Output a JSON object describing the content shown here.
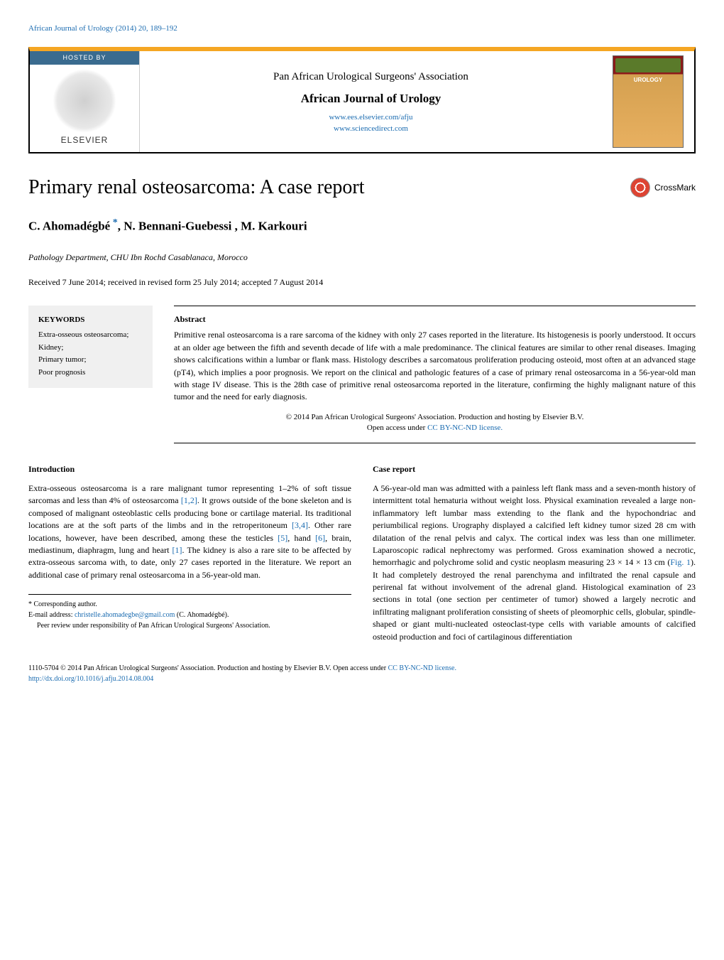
{
  "header_link": "African Journal of Urology (2014) 20, 189–192",
  "banner": {
    "hosted_by": "HOSTED BY",
    "elsevier": "ELSEVIER",
    "association": "Pan African Urological Surgeons' Association",
    "journal": "African Journal of Urology",
    "link1": "www.ees.elsevier.com/afju",
    "link2": "www.sciencedirect.com",
    "cover_badge": "AFRICAN JOURNAL"
  },
  "title": "Primary renal osteosarcoma: A case report",
  "crossmark": "CrossMark",
  "authors": "C. Ahomadégbé *, N. Bennani-Guebessi , M. Karkouri",
  "affiliation": "Pathology Department, CHU Ibn Rochd Casablanaca, Morocco",
  "dates": "Received 7 June 2014; received in revised form 25 July 2014; accepted 7 August 2014",
  "keywords": {
    "heading": "KEYWORDS",
    "items": "Extra-osseous osteosarcoma;\nKidney;\nPrimary tumor;\nPoor prognosis"
  },
  "abstract": {
    "heading": "Abstract",
    "text": "Primitive renal osteosarcoma is a rare sarcoma of the kidney with only 27 cases reported in the literature. Its histogenesis is poorly understood. It occurs at an older age between the fifth and seventh decade of life with a male predominance. The clinical features are similar to other renal diseases. Imaging shows calcifications within a lumbar or flank mass. Histology describes a sarcomatous proliferation producing osteoid, most often at an advanced stage (pT4), which implies a poor prognosis. We report on the clinical and pathologic features of a case of primary renal osteosarcoma in a 56-year-old man with stage IV disease. This is the 28th case of primitive renal osteosarcoma reported in the literature, confirming the highly malignant nature of this tumor and the need for early diagnosis.",
    "copyright": "© 2014 Pan African Urological Surgeons' Association. Production and hosting by Elsevier B.V.",
    "license_prefix": "Open access under ",
    "license": "CC BY-NC-ND license."
  },
  "intro": {
    "heading": "Introduction",
    "p1a": "Extra-osseous osteosarcoma is a rare malignant tumor representing 1–2% of soft tissue sarcomas and less than 4% of osteosarcoma ",
    "r1": "[1,2]",
    "p1b": ". It grows outside of the bone skeleton and is composed of malignant osteoblastic cells producing bone or cartilage material. Its traditional locations are at the soft parts of the limbs and in the retroperitoneum ",
    "r2": "[3,4]",
    "p1c": ". Other rare locations, however, have been described, among these the testicles ",
    "r3": "[5]",
    "p1d": ", hand ",
    "r4": "[6]",
    "p1e": ", brain, mediastinum, diaphragm, lung and heart ",
    "r5": "[1]",
    "p1f": ". The kidney is also a rare site to be affected by extra-osseous sarcoma with, to date, only 27 cases reported in the literature. We report an additional case of primary renal osteosarcoma in a 56-year-old man."
  },
  "case": {
    "heading": "Case report",
    "p1a": "A 56-year-old man was admitted with a painless left flank mass and a seven-month history of intermittent total hematuria without weight loss. Physical examination revealed a large non-inflammatory left lumbar mass extending to the flank and the hypochondriac and periumbilical regions. Urography displayed a calcified left kidney tumor sized 28 cm with dilatation of the renal pelvis and calyx. The cortical index was less than one millimeter. Laparoscopic radical nephrectomy was performed. Gross examination showed a necrotic, hemorrhagic and polychrome solid and cystic neoplasm measuring 23 × 14 × 13 cm (",
    "fig": "Fig. 1",
    "p1b": "). It had completely destroyed the renal parenchyma and infiltrated the renal capsule and perirenal fat without involvement of the adrenal gland. Histological examination of 23 sections in total (one section per centimeter of tumor) showed a largely necrotic and infiltrating malignant proliferation consisting of sheets of pleomorphic cells, globular, spindle-shaped or giant multi-nucleated osteoclast-type cells with variable amounts of calcified osteoid production and foci of cartilaginous differentiation"
  },
  "footnotes": {
    "corr": "* Corresponding author.",
    "email_label": "E-mail address: ",
    "email": "christelle.ahomadegbe@gmail.com",
    "email_suffix": " (C. Ahomadégbé).",
    "peer": "Peer review under responsibility of Pan African Urological Surgeons' Association."
  },
  "footer": {
    "line1": "1110-5704 © 2014 Pan African Urological Surgeons' Association. Production and hosting by Elsevier B.V. ",
    "license_prefix": "Open access under ",
    "license": "CC BY-NC-ND license.",
    "doi": "http://dx.doi.org/10.1016/j.afju.2014.08.004"
  },
  "colors": {
    "link": "#1a6bb0",
    "orange": "#f5a623",
    "hosted_bg": "#3a6b8f",
    "keywords_bg": "#f0f0f0"
  }
}
